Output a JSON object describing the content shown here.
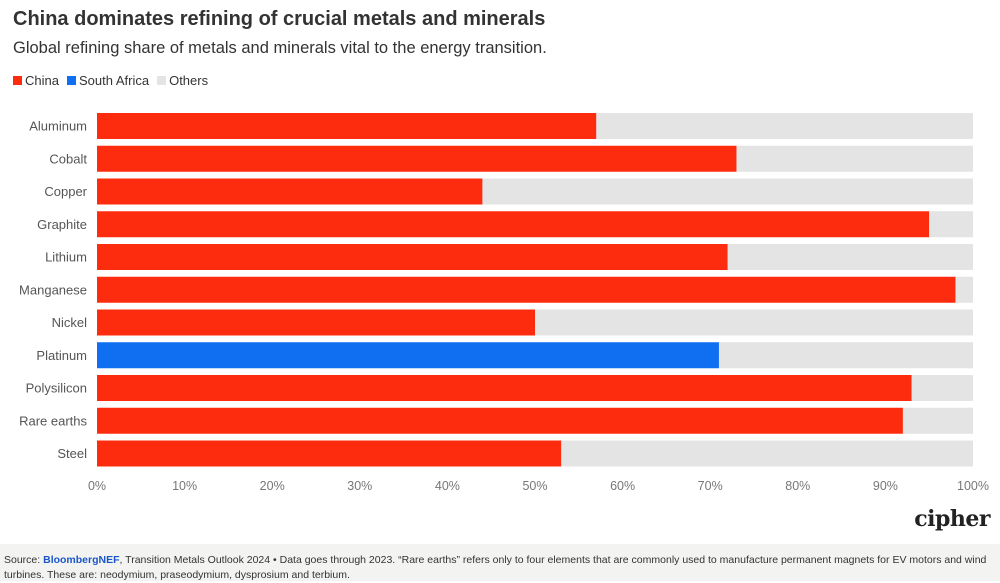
{
  "title": "China dominates refining of crucial metals and minerals",
  "subtitle": "Global refining share of metals and minerals vital to the energy transition.",
  "legend": [
    {
      "label": "China",
      "color": "#fd2c0e"
    },
    {
      "label": "South Africa",
      "color": "#0f6ff0"
    },
    {
      "label": "Others",
      "color": "#e4e4e4"
    }
  ],
  "chart_data": {
    "type": "bar",
    "orientation": "horizontal",
    "stacked": true,
    "xlim": [
      0,
      100
    ],
    "x_ticks": [
      "0%",
      "10%",
      "20%",
      "30%",
      "40%",
      "50%",
      "60%",
      "70%",
      "80%",
      "90%",
      "100%"
    ],
    "categories": [
      "Aluminum",
      "Cobalt",
      "Copper",
      "Graphite",
      "Lithium",
      "Manganese",
      "Nickel",
      "Platinum",
      "Polysilicon",
      "Rare earths",
      "Steel"
    ],
    "series": [
      {
        "name": "China",
        "color": "#fd2c0e",
        "values": [
          57,
          73,
          44,
          95,
          72,
          98,
          50,
          0,
          93,
          92,
          53
        ]
      },
      {
        "name": "South Africa",
        "color": "#0f6ff0",
        "values": [
          0,
          0,
          0,
          0,
          0,
          0,
          0,
          71,
          0,
          0,
          0
        ]
      },
      {
        "name": "Others",
        "color": "#e4e4e4",
        "values": [
          43,
          27,
          56,
          5,
          28,
          2,
          50,
          29,
          7,
          8,
          47
        ]
      }
    ]
  },
  "footer": {
    "source_prefix": "Source: ",
    "source_name": "BloombergNEF",
    "source_text": ", Transition Metals Outlook 2024 • Data goes through 2023. “Rare earths” refers only to four elements that are commonly used to manufacture permanent magnets for EV motors and wind turbines. These are: neodymium, praseodymium, dysprosium and terbium."
  },
  "logo_text": "cipher"
}
